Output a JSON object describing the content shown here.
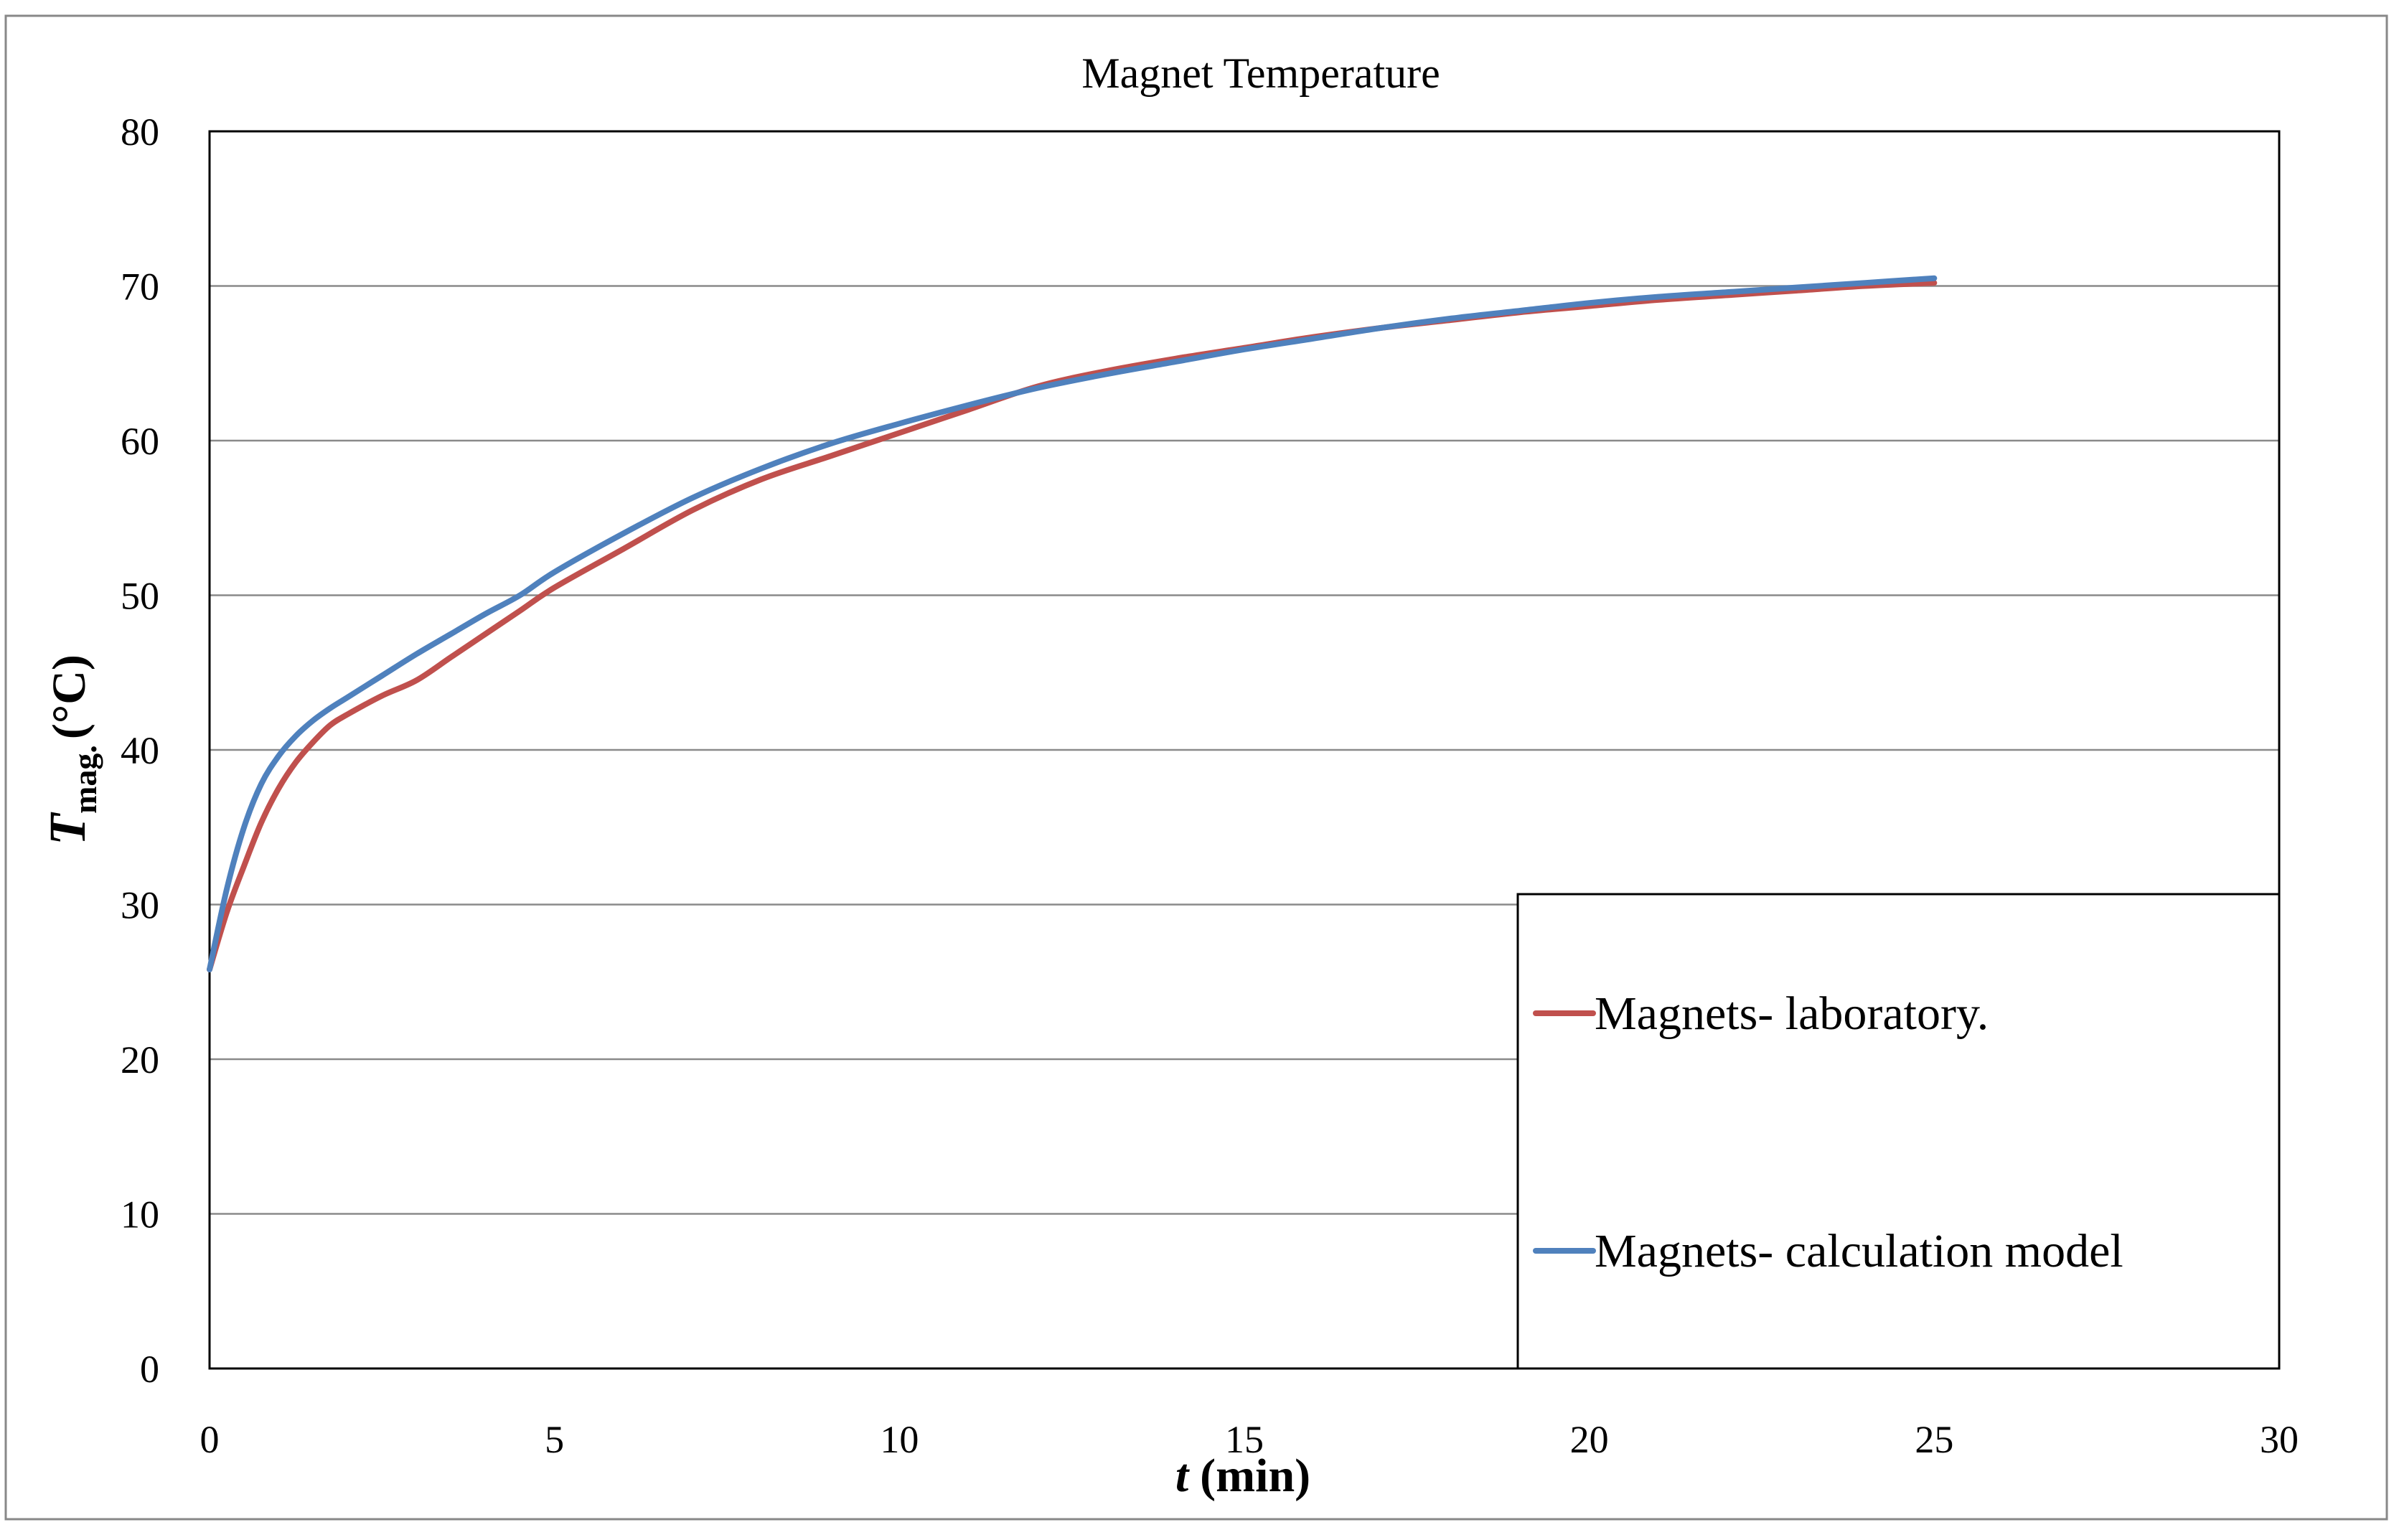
{
  "chart_data": {
    "type": "line",
    "title": "Magnet Temperature",
    "xlabel_var": "t",
    "xlabel_unit": "(min)",
    "ylabel_var": "T",
    "ylabel_sub": "mag.",
    "ylabel_unit": "(°C)",
    "xlim": [
      0,
      30
    ],
    "ylim": [
      0,
      80
    ],
    "xticks": [
      0,
      5,
      10,
      15,
      20,
      25,
      30
    ],
    "yticks": [
      0,
      10,
      20,
      30,
      40,
      50,
      60,
      70,
      80
    ],
    "grid": "horizontal",
    "legend_position": "bottom-right",
    "series": [
      {
        "name": "Magnets- laboratory.",
        "color": "#c0504d",
        "x": [
          0,
          0.25,
          0.5,
          0.75,
          1,
          1.25,
          1.5,
          1.75,
          2,
          2.5,
          3,
          3.5,
          4,
          4.5,
          5,
          6,
          7,
          8,
          9,
          10,
          11,
          12,
          13,
          14,
          15,
          16,
          17,
          18,
          19,
          20,
          21,
          22,
          23,
          24,
          25
        ],
        "y": [
          25.8,
          29.5,
          32.5,
          35.3,
          37.5,
          39.2,
          40.5,
          41.6,
          42.3,
          43.5,
          44.5,
          46,
          47.5,
          49,
          50.5,
          53,
          55.5,
          57.5,
          59,
          60.5,
          62,
          63.5,
          64.5,
          65.3,
          66,
          66.7,
          67.3,
          67.8,
          68.3,
          68.7,
          69.1,
          69.4,
          69.7,
          70,
          70.2
        ]
      },
      {
        "name": "Magnets- calculation model",
        "color": "#4f81bd",
        "x": [
          0,
          0.25,
          0.5,
          0.75,
          1,
          1.25,
          1.5,
          1.75,
          2,
          2.5,
          3,
          3.5,
          4,
          4.5,
          5,
          6,
          7,
          8,
          9,
          10,
          11,
          12,
          13,
          14,
          15,
          16,
          17,
          18,
          19,
          20,
          21,
          22,
          23,
          24,
          25
        ],
        "y": [
          25.8,
          31,
          35,
          37.8,
          39.6,
          40.9,
          41.9,
          42.7,
          43.4,
          44.8,
          46.2,
          47.5,
          48.8,
          50,
          51.5,
          54,
          56.3,
          58.2,
          59.8,
          61.1,
          62.3,
          63.4,
          64.3,
          65.1,
          65.9,
          66.6,
          67.3,
          67.9,
          68.4,
          68.9,
          69.3,
          69.6,
          69.9,
          70.2,
          70.5
        ]
      }
    ]
  }
}
